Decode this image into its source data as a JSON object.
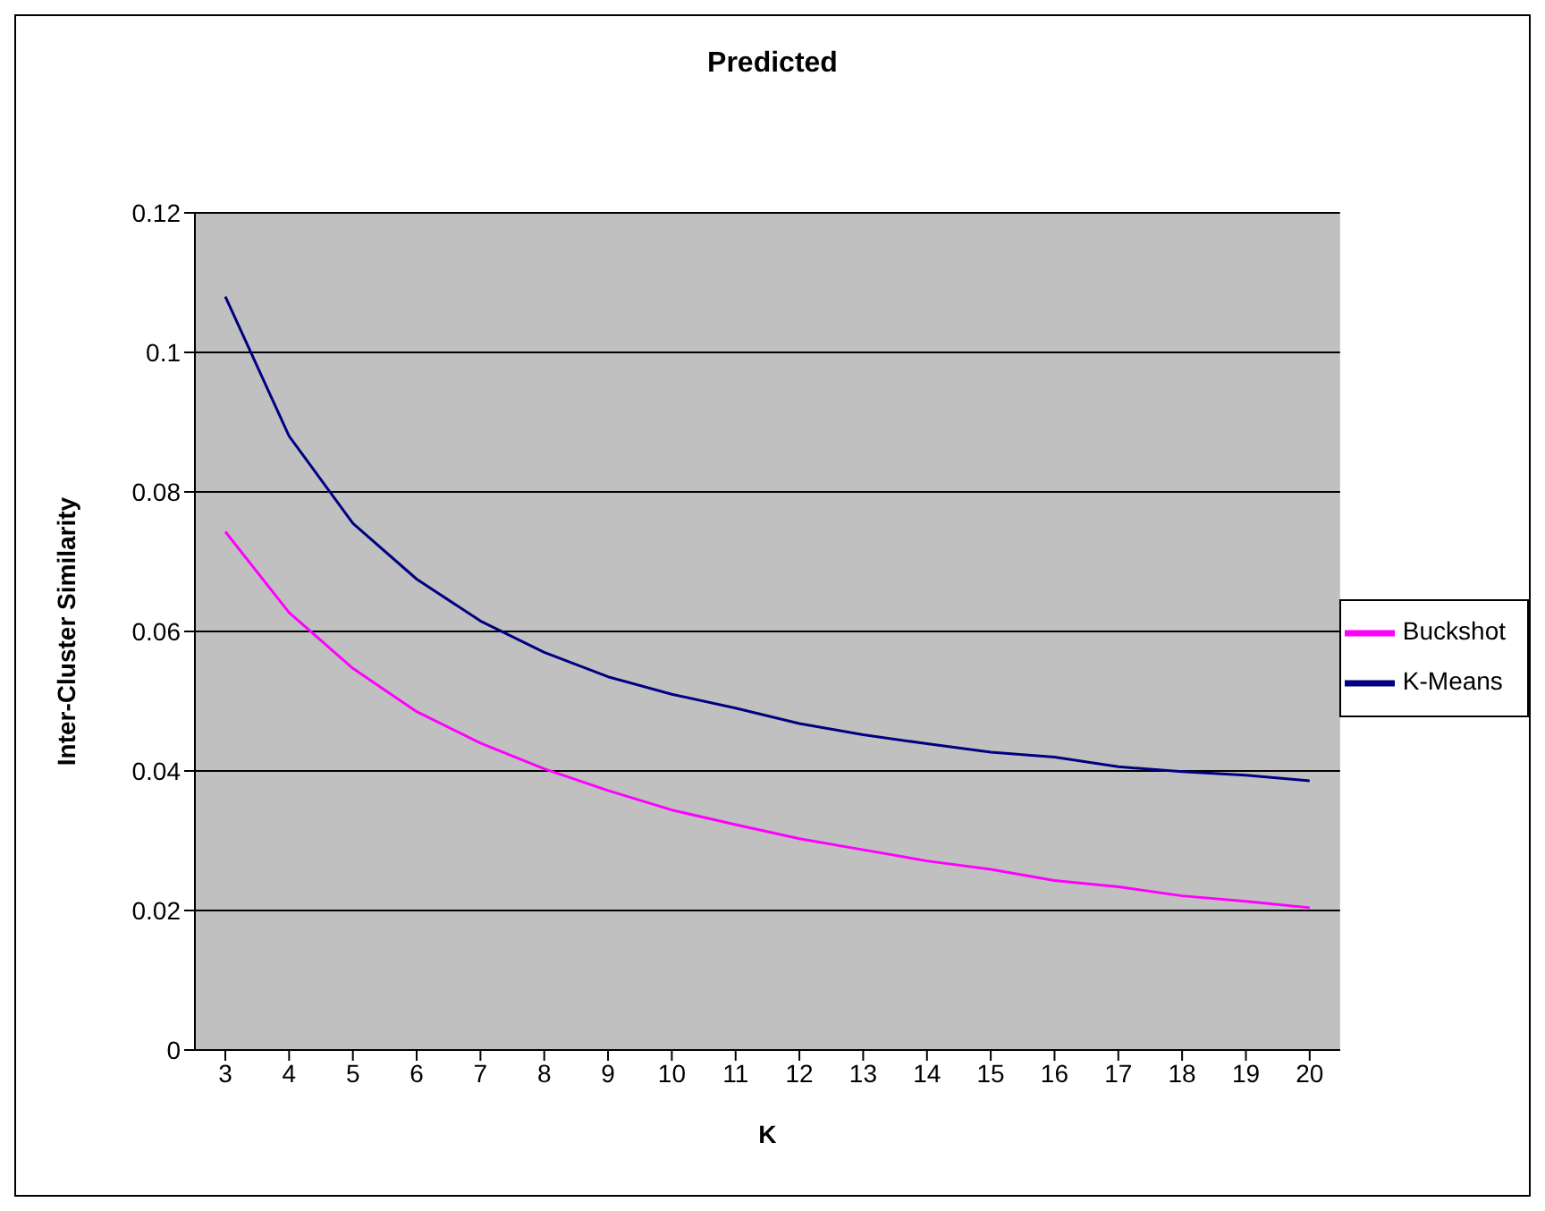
{
  "chart_data": {
    "type": "line",
    "title": "Predicted",
    "xlabel": "K",
    "ylabel": "Inter-Cluster Similarity",
    "categories": [
      "3",
      "4",
      "5",
      "6",
      "7",
      "8",
      "9",
      "10",
      "11",
      "12",
      "13",
      "14",
      "15",
      "16",
      "17",
      "18",
      "19",
      "20"
    ],
    "series": [
      {
        "name": "K-Means",
        "color": "#000080",
        "values": [
          0.108,
          0.088,
          0.0755,
          0.0675,
          0.0615,
          0.057,
          0.0535,
          0.051,
          0.049,
          0.0468,
          0.0452,
          0.0439,
          0.0427,
          0.042,
          0.0406,
          0.0399,
          0.0394,
          0.0386
        ]
      },
      {
        "name": "Buckshot",
        "color": "#ff00ff",
        "values": [
          0.0743,
          0.0627,
          0.0547,
          0.0485,
          0.044,
          0.0403,
          0.0372,
          0.0344,
          0.0323,
          0.0303,
          0.0287,
          0.0271,
          0.0259,
          0.0243,
          0.0234,
          0.0221,
          0.0213,
          0.0204
        ]
      }
    ],
    "ylim": [
      0,
      0.12
    ],
    "yticks": [
      0,
      0.02,
      0.04,
      0.06,
      0.08,
      0.1,
      0.12
    ],
    "grid": "y",
    "legend": "right",
    "marker": "none",
    "line_style": "solid"
  }
}
